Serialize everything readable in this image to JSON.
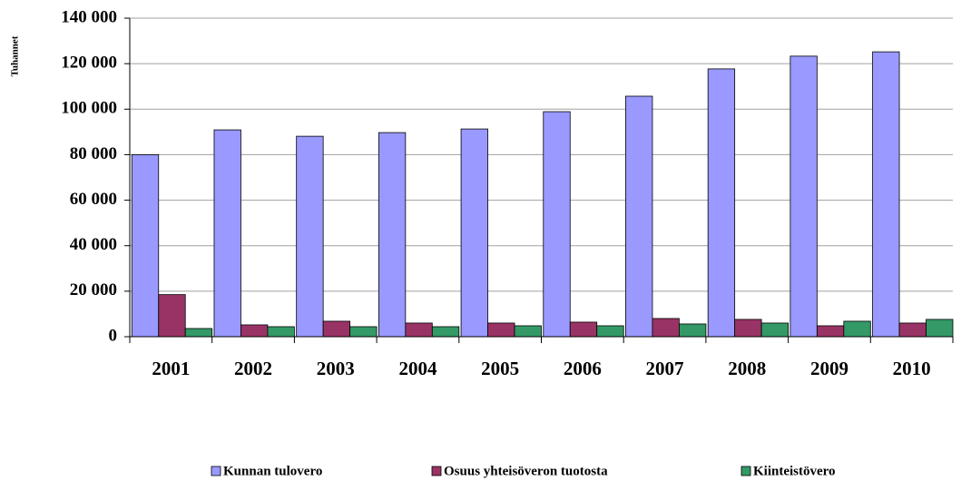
{
  "chart_data": {
    "type": "bar",
    "y_label": "Tuhannet",
    "categories": [
      "2001",
      "2002",
      "2003",
      "2004",
      "2005",
      "2006",
      "2007",
      "2008",
      "2009",
      "2010"
    ],
    "series": [
      {
        "name": "Kunnan tulovero",
        "color": "#9999ff",
        "values": [
          80000,
          90900,
          88100,
          89700,
          91300,
          98900,
          105700,
          117700,
          123300,
          125200
        ]
      },
      {
        "name": "Osuus yhteisöveron tuotosta",
        "color": "#993366",
        "values": [
          18500,
          5200,
          6800,
          6000,
          6000,
          6400,
          8000,
          7600,
          4800,
          6000
        ]
      },
      {
        "name": "Kiinteistövero",
        "color": "#339966",
        "values": [
          3600,
          4400,
          4400,
          4400,
          4800,
          4800,
          5600,
          6000,
          6800,
          7600
        ]
      }
    ],
    "ylim": [
      0,
      140000
    ],
    "yticks": [
      0,
      {
        "value": 20000,
        "label": "20 000"
      },
      {
        "value": 40000,
        "label": "40 000"
      },
      {
        "value": 60000,
        "label": "60 000"
      },
      {
        "value": 80000,
        "label": "80 000"
      },
      {
        "value": 100000,
        "label": "100 000"
      },
      {
        "value": 120000,
        "label": "120 000"
      },
      {
        "value": 140000,
        "label": "140 000"
      }
    ],
    "grid": true,
    "legend": "bottom"
  }
}
